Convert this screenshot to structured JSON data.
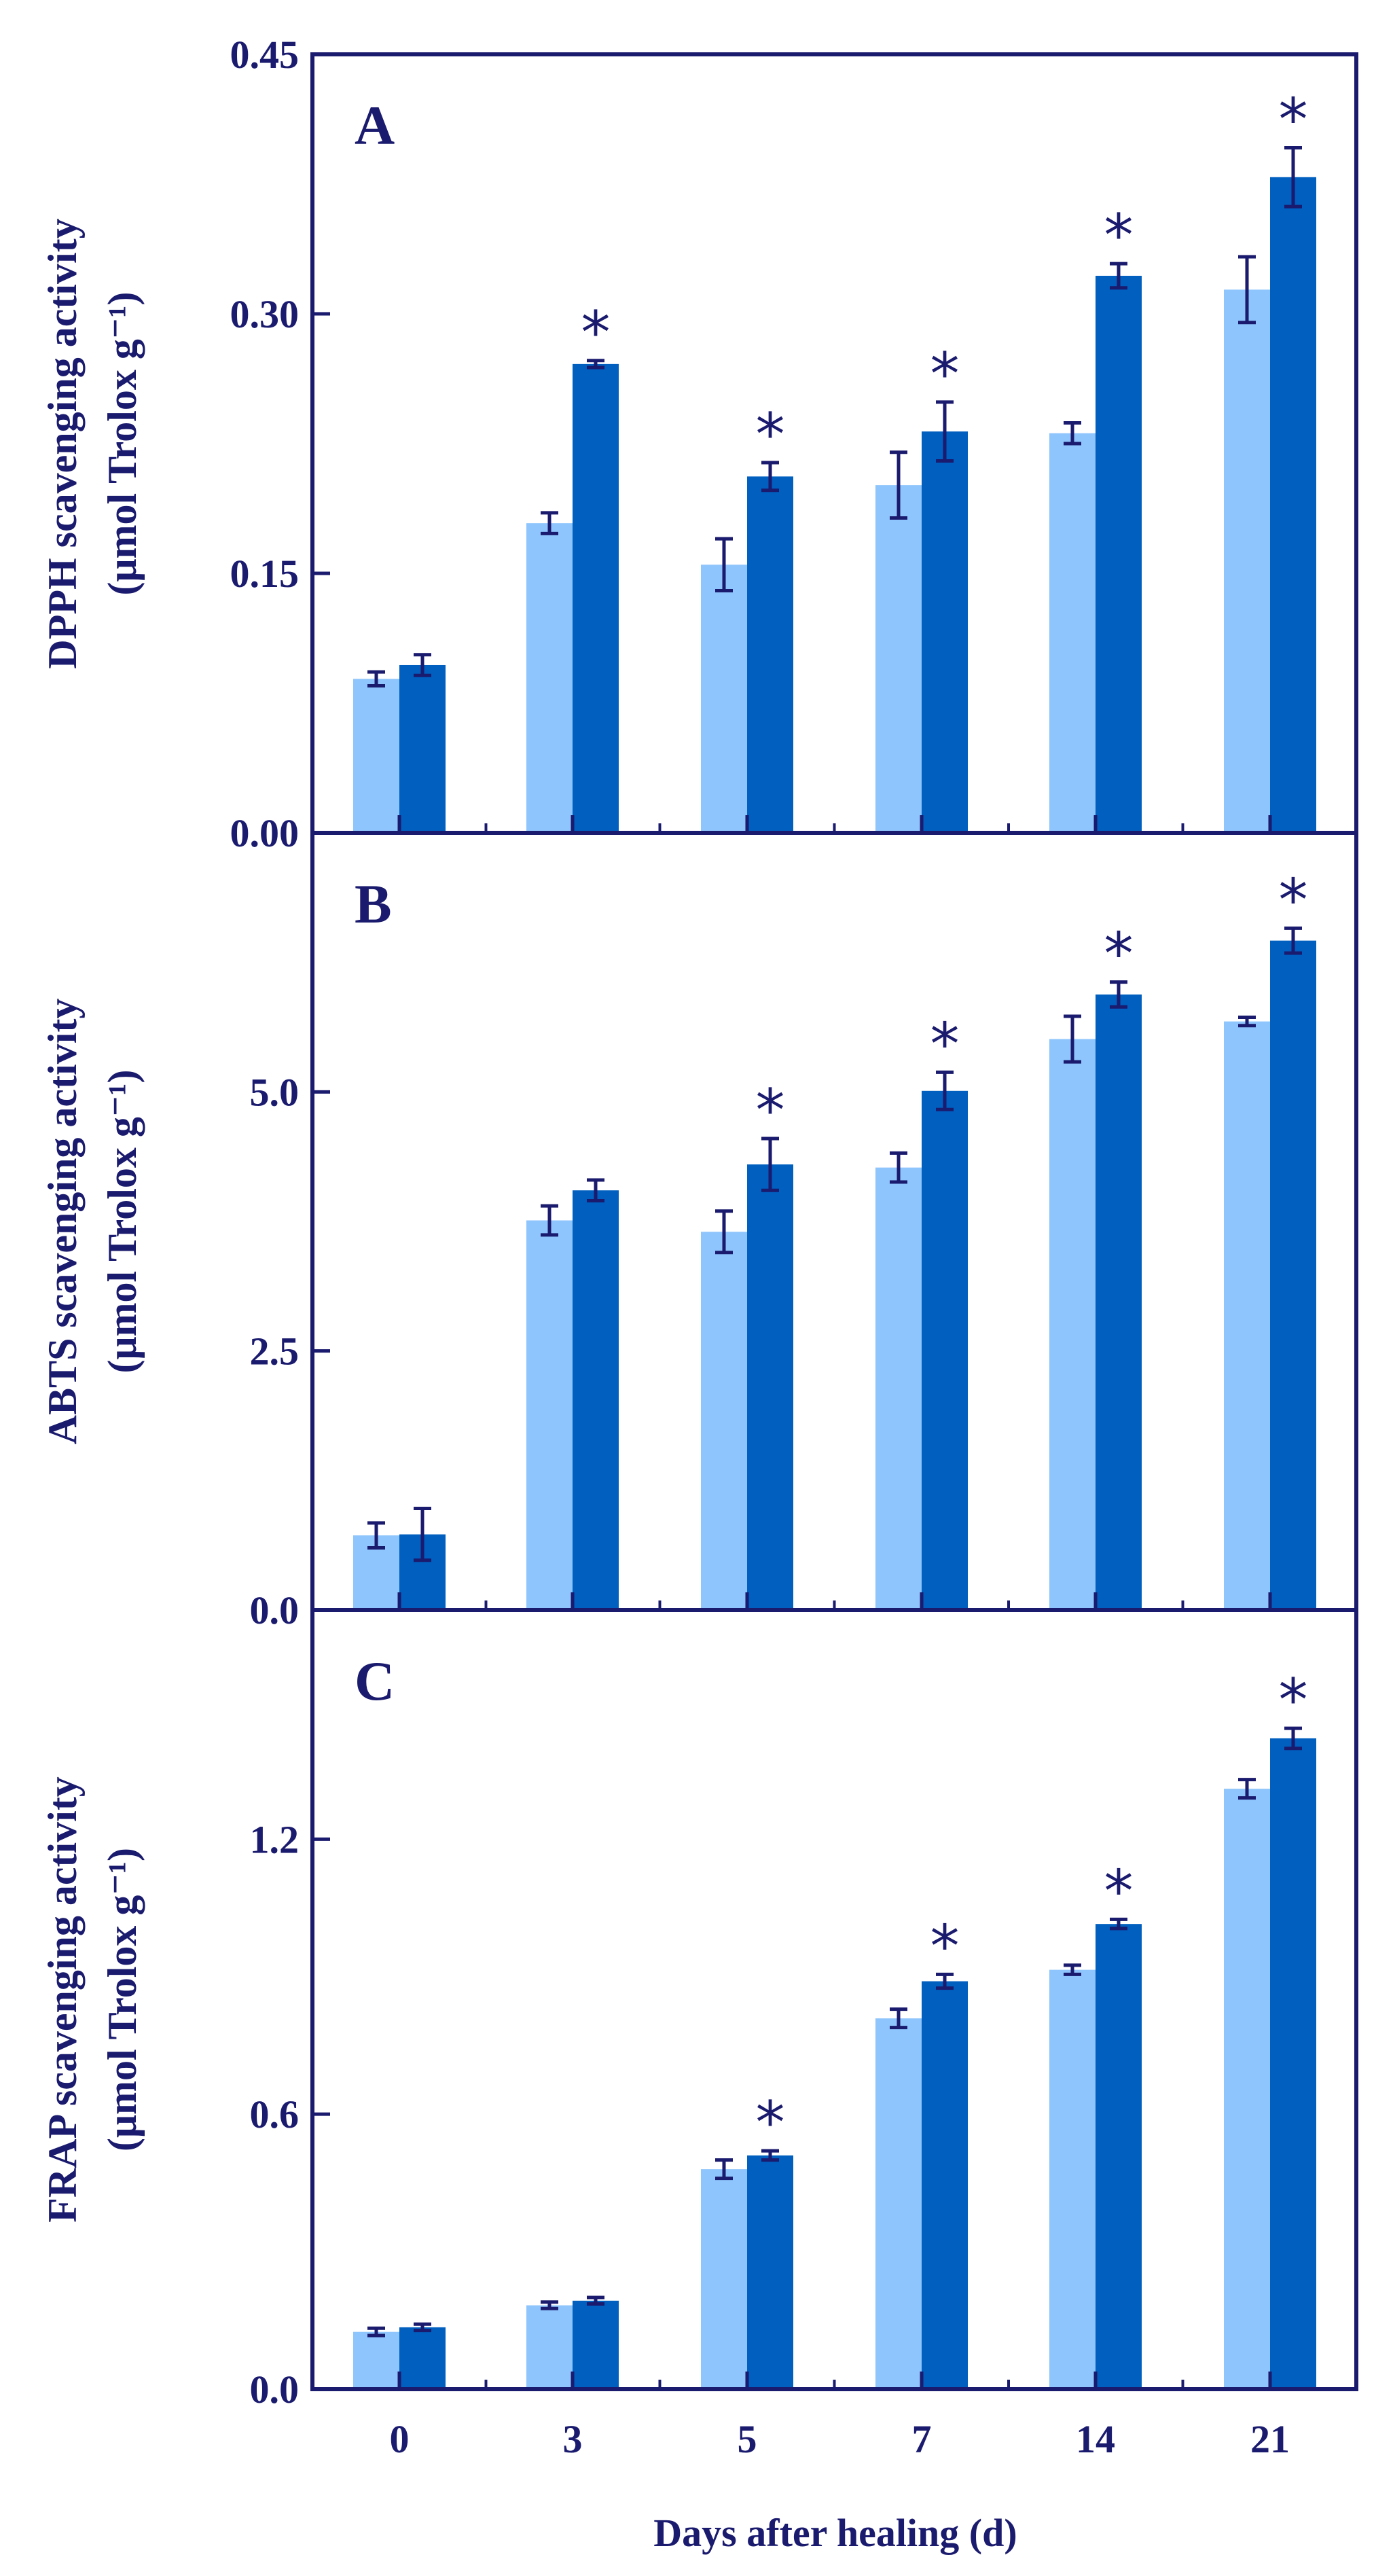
{
  "colors": {
    "light": "#8ec5fc",
    "dark": "#005fbf",
    "ink": "#1a1a6e"
  },
  "xlabel": "Days after healing (d)",
  "chart_data": [
    {
      "type": "bar",
      "panel": "A",
      "categories": [
        "0",
        "3",
        "5",
        "7",
        "14",
        "21"
      ],
      "ylabel_line1": "DPPH scavenging activity",
      "ylabel_line2": "(μmol Trolox g⁻¹)",
      "ylim": [
        0,
        0.45
      ],
      "yticks": [
        "0.00",
        "0.15",
        "0.30",
        "0.45"
      ],
      "series": [
        {
          "values": [
            0.089,
            0.179,
            0.155,
            0.201,
            0.231,
            0.314
          ],
          "errors": [
            0.004,
            0.006,
            0.015,
            0.019,
            0.006,
            0.019
          ]
        },
        {
          "values": [
            0.097,
            0.271,
            0.206,
            0.232,
            0.322,
            0.379
          ],
          "errors": [
            0.006,
            0.002,
            0.008,
            0.017,
            0.007,
            0.017
          ]
        }
      ],
      "significant": [
        false,
        true,
        true,
        true,
        true,
        true
      ]
    },
    {
      "type": "bar",
      "panel": "B",
      "categories": [
        "0",
        "3",
        "5",
        "7",
        "14",
        "21"
      ],
      "ylabel_line1": "ABTS scavenging activity",
      "ylabel_line2": "(μmol Trolox g⁻¹)",
      "ylim": [
        0,
        7.5
      ],
      "yticks": [
        "0.0",
        "2.5",
        "5.0"
      ],
      "series": [
        {
          "values": [
            0.72,
            3.76,
            3.65,
            4.27,
            5.51,
            5.68
          ],
          "errors": [
            0.12,
            0.14,
            0.2,
            0.14,
            0.22,
            0.04
          ]
        },
        {
          "values": [
            0.73,
            4.05,
            4.3,
            5.01,
            5.94,
            6.46
          ],
          "errors": [
            0.25,
            0.1,
            0.25,
            0.18,
            0.12,
            0.12
          ]
        }
      ],
      "significant": [
        false,
        false,
        true,
        true,
        true,
        true
      ]
    },
    {
      "type": "bar",
      "panel": "C",
      "categories": [
        "0",
        "3",
        "5",
        "7",
        "14",
        "21"
      ],
      "ylabel_line1": "FRAP scavenging activity",
      "ylabel_line2": "(μmol Trolox g⁻¹)",
      "ylim": [
        0,
        1.7
      ],
      "yticks": [
        "0.0",
        "0.6",
        "1.2"
      ],
      "series": [
        {
          "values": [
            0.125,
            0.183,
            0.48,
            0.809,
            0.915,
            1.31
          ],
          "errors": [
            0.008,
            0.007,
            0.02,
            0.02,
            0.01,
            0.02
          ]
        },
        {
          "values": [
            0.135,
            0.193,
            0.51,
            0.89,
            1.015,
            1.42
          ],
          "errors": [
            0.007,
            0.007,
            0.01,
            0.015,
            0.01,
            0.022
          ]
        }
      ],
      "significant": [
        false,
        false,
        true,
        true,
        true,
        true
      ]
    }
  ]
}
